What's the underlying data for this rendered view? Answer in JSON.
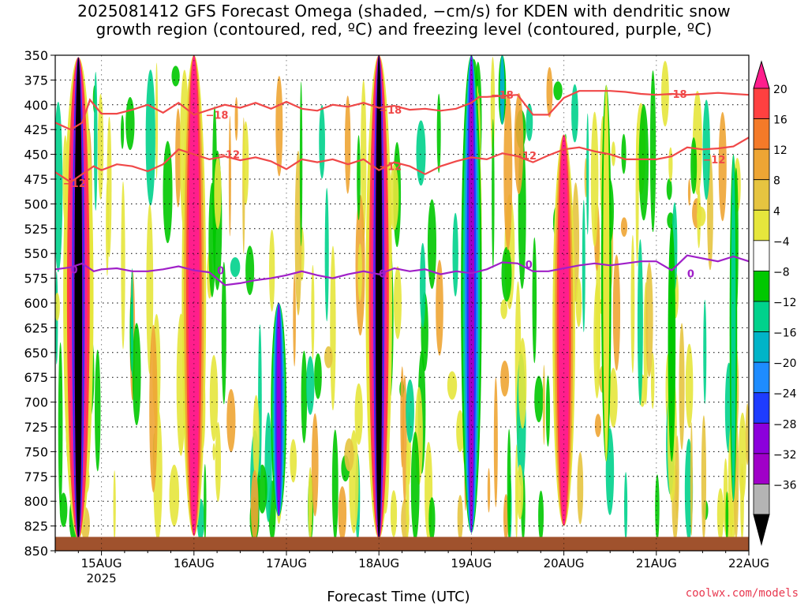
{
  "title": {
    "line1": "2025081412 GFS Forecast Omega (shaded, −cm/s) for KDEN with dendritic snow",
    "line2": "growth region (contoured, red, ºC) and freezing level (contoured, purple, ºC)"
  },
  "credit": "coolwx.com/models",
  "chart_data": {
    "type": "heatmap",
    "title": "2025081412 GFS Forecast Omega (shaded, −cm/s) for KDEN with dendritic snow growth region (contoured, red, ºC) and freezing level (contoured, purple, ºC)",
    "xlabel": "Forecast Time (UTC)",
    "ylabel": "",
    "x_ticks": [
      "15AUG",
      "16AUG",
      "17AUG",
      "18AUG",
      "19AUG",
      "20AUG",
      "21AUG",
      "22AUG"
    ],
    "x_year_label": "2025",
    "xlim_hours": [
      -12,
      168
    ],
    "y_ticks": [
      350,
      375,
      400,
      425,
      450,
      475,
      500,
      525,
      550,
      575,
      600,
      625,
      650,
      675,
      700,
      725,
      750,
      775,
      800,
      825,
      850
    ],
    "ylim": [
      850,
      350
    ],
    "grid": true,
    "colorbar": {
      "labels": [
        "20",
        "16",
        "12",
        "8",
        "4",
        "−4",
        "−8",
        "−12",
        "−16",
        "−20",
        "−24",
        "−28",
        "−32",
        "−36"
      ],
      "colors": [
        "#ff1e8c",
        "#ff4040",
        "#f47a28",
        "#eea534",
        "#e6c440",
        "#e6e63c",
        "#ffffff",
        "#00c800",
        "#00d28c",
        "#00b4c8",
        "#1e8cff",
        "#1e3cff",
        "#8c00dc",
        "#a000c8",
        "#b4b4b4",
        "#000000"
      ]
    },
    "omega_columns": [
      {
        "hour": -6,
        "top": 352,
        "bottom": 838,
        "core": "#000000",
        "width": 1.6
      },
      {
        "hour": 24,
        "top": 350,
        "bottom": 835,
        "core": "#ff1e8c",
        "width": 1.4
      },
      {
        "hour": 46,
        "top": 600,
        "bottom": 815,
        "core": "#8c00dc",
        "width": 0.9
      },
      {
        "hour": 72,
        "top": 350,
        "bottom": 838,
        "core": "#000000",
        "width": 1.4
      },
      {
        "hour": 96,
        "top": 350,
        "bottom": 832,
        "core": "#a000c8",
        "width": 1.2
      },
      {
        "hour": 120,
        "top": 430,
        "bottom": 825,
        "core": "#ff1e8c",
        "width": 1.3
      },
      {
        "hour": 104,
        "top": 350,
        "bottom": 420,
        "core": "#00b4c8",
        "width": 0.6
      },
      {
        "hour": 131,
        "top": 380,
        "bottom": 760,
        "core": "#e6e63c",
        "width": 0.8
      },
      {
        "hour": 148,
        "top": 520,
        "bottom": 760,
        "core": "#00c800",
        "width": 0.6
      },
      {
        "hour": 164,
        "top": 450,
        "bottom": 800,
        "core": "#00d28c",
        "width": 0.6
      }
    ],
    "series": [
      {
        "name": "-18",
        "color": "#f04848",
        "x": [
          -12,
          -8,
          -5,
          -3,
          0,
          4,
          8,
          12,
          16,
          20,
          24,
          28,
          32,
          36,
          40,
          44,
          48,
          52,
          56,
          60,
          64,
          68,
          72,
          76,
          80,
          84,
          88,
          92,
          96,
          98,
          100,
          104,
          108,
          112,
          116,
          120,
          124,
          128,
          132,
          136,
          140,
          144,
          148,
          152,
          156,
          160,
          164,
          168
        ],
        "y": [
          418,
          425,
          418,
          395,
          409,
          409,
          405,
          400,
          408,
          398,
          410,
          405,
          400,
          403,
          398,
          404,
          397,
          404,
          406,
          400,
          402,
          398,
          403,
          401,
          405,
          404,
          406,
          404,
          398,
          392,
          392,
          391,
          390,
          410,
          410,
          393,
          386,
          386,
          386,
          387,
          389,
          390,
          389,
          390,
          389,
          388,
          389,
          390
        ]
      },
      {
        "name": "-12",
        "color": "#f04848",
        "x": [
          -12,
          -8,
          -5,
          -2,
          0,
          4,
          8,
          12,
          16,
          20,
          24,
          28,
          32,
          36,
          40,
          44,
          48,
          52,
          56,
          60,
          64,
          68,
          72,
          76,
          80,
          84,
          88,
          92,
          96,
          100,
          104,
          108,
          112,
          116,
          120,
          124,
          128,
          132,
          136,
          140,
          144,
          148,
          152,
          156,
          160,
          164,
          168
        ],
        "y": [
          468,
          478,
          470,
          462,
          466,
          460,
          462,
          467,
          460,
          445,
          450,
          455,
          452,
          456,
          453,
          457,
          465,
          455,
          458,
          455,
          460,
          455,
          466,
          458,
          462,
          470,
          462,
          457,
          453,
          455,
          449,
          452,
          458,
          451,
          445,
          443,
          447,
          450,
          455,
          455,
          455,
          452,
          443,
          445,
          444,
          442,
          433
        ]
      },
      {
        "name": "0",
        "color": "#a020c8",
        "x": [
          -12,
          -8,
          -5,
          -2,
          0,
          4,
          8,
          12,
          16,
          20,
          24,
          28,
          32,
          36,
          40,
          44,
          48,
          52,
          56,
          60,
          64,
          68,
          72,
          76,
          80,
          84,
          88,
          92,
          96,
          100,
          104,
          108,
          112,
          116,
          120,
          124,
          128,
          132,
          136,
          140,
          144,
          148,
          152,
          156,
          160,
          164,
          168
        ],
        "y": [
          566,
          564,
          560,
          568,
          566,
          565,
          568,
          568,
          566,
          563,
          567,
          569,
          582,
          580,
          577,
          575,
          572,
          568,
          572,
          575,
          571,
          568,
          571,
          565,
          568,
          566,
          571,
          568,
          570,
          566,
          559,
          560,
          568,
          568,
          565,
          562,
          560,
          562,
          560,
          558,
          558,
          567,
          552,
          555,
          558,
          553,
          558
        ]
      }
    ],
    "contour_labels": [
      {
        "text": "−18",
        "hour": 27,
        "p": 410
      },
      {
        "text": "−18",
        "hour": 72,
        "p": 405
      },
      {
        "text": "−18",
        "hour": 101,
        "p": 390
      },
      {
        "text": "−18",
        "hour": 146,
        "p": 389
      },
      {
        "text": "−12",
        "hour": -10,
        "p": 479
      },
      {
        "text": "−12",
        "hour": 30,
        "p": 450
      },
      {
        "text": "−12",
        "hour": 72,
        "p": 462
      },
      {
        "text": "−12",
        "hour": 107,
        "p": 451
      },
      {
        "text": "−12",
        "hour": 156,
        "p": 455
      },
      {
        "text": "0",
        "hour": -8,
        "p": 566
      },
      {
        "text": "0",
        "hour": 30,
        "p": 567
      },
      {
        "text": "0",
        "hour": 72,
        "p": 570
      },
      {
        "text": "0",
        "hour": 110,
        "p": 561
      },
      {
        "text": "0",
        "hour": 152,
        "p": 570
      }
    ]
  }
}
